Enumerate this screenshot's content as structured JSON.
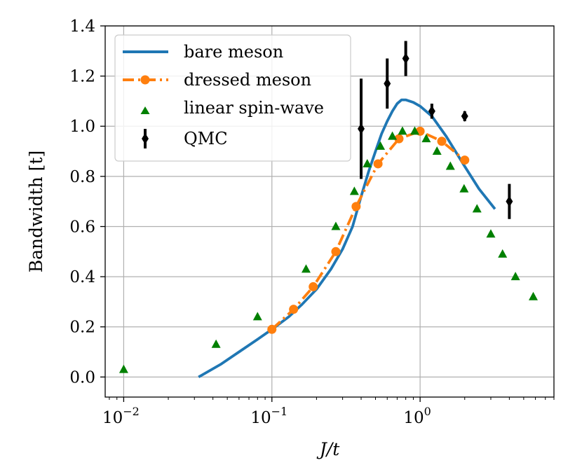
{
  "chart_data": {
    "type": "line",
    "xscale": "log",
    "xlim": [
      0.0075,
      8.0
    ],
    "ylim": [
      -0.08,
      1.4
    ],
    "grid": true,
    "xlabel": "J/t",
    "ylabel": "Bandwidth [t]",
    "xticks": [
      {
        "value": 0.01,
        "base": "10",
        "exp": "−2"
      },
      {
        "value": 0.1,
        "base": "10",
        "exp": "−1"
      },
      {
        "value": 1,
        "base": "10",
        "exp": "0"
      }
    ],
    "yticks": [
      "0.0",
      "0.2",
      "0.4",
      "0.6",
      "0.8",
      "1.0",
      "1.2",
      "1.4"
    ],
    "legend_position": "top-left",
    "series": [
      {
        "name": "bare meson",
        "style": "line",
        "color": "#1f77b4",
        "x": [
          0.032,
          0.045,
          0.06,
          0.08,
          0.1,
          0.13,
          0.16,
          0.2,
          0.25,
          0.3,
          0.35,
          0.4,
          0.45,
          0.5,
          0.55,
          0.6,
          0.65,
          0.7,
          0.75,
          0.8,
          0.9,
          1.0,
          1.2,
          1.5,
          2.0,
          2.5,
          3.2
        ],
        "y": [
          0.0,
          0.05,
          0.1,
          0.15,
          0.19,
          0.24,
          0.29,
          0.35,
          0.43,
          0.51,
          0.6,
          0.72,
          0.82,
          0.9,
          0.97,
          1.02,
          1.06,
          1.09,
          1.105,
          1.105,
          1.095,
          1.08,
          1.04,
          0.96,
          0.84,
          0.75,
          0.67
        ]
      },
      {
        "name": "dressed meson",
        "style": "dashdot-markers",
        "color": "#ff7f0e",
        "x": [
          0.1,
          0.14,
          0.19,
          0.27,
          0.37,
          0.52,
          0.72,
          1.0,
          1.4,
          2.0
        ],
        "y": [
          0.19,
          0.27,
          0.36,
          0.5,
          0.68,
          0.85,
          0.95,
          0.98,
          0.94,
          0.865
        ]
      },
      {
        "name": "linear spin-wave",
        "style": "triangles",
        "color": "#008000",
        "x": [
          0.01,
          0.042,
          0.08,
          0.17,
          0.27,
          0.36,
          0.44,
          0.54,
          0.65,
          0.76,
          0.92,
          1.1,
          1.3,
          1.6,
          1.98,
          2.42,
          3.0,
          3.6,
          4.4,
          5.8
        ],
        "y": [
          0.03,
          0.13,
          0.24,
          0.43,
          0.6,
          0.74,
          0.85,
          0.92,
          0.96,
          0.98,
          0.98,
          0.95,
          0.9,
          0.84,
          0.75,
          0.67,
          0.57,
          0.49,
          0.4,
          0.32
        ]
      },
      {
        "name": "QMC",
        "style": "errorbar",
        "color": "#000000",
        "x": [
          0.4,
          0.6,
          0.8,
          1.2,
          2.0,
          4.0
        ],
        "y": [
          0.99,
          1.17,
          1.27,
          1.06,
          1.04,
          0.7
        ],
        "err": [
          0.2,
          0.1,
          0.07,
          0.03,
          0.02,
          0.07
        ]
      }
    ]
  }
}
